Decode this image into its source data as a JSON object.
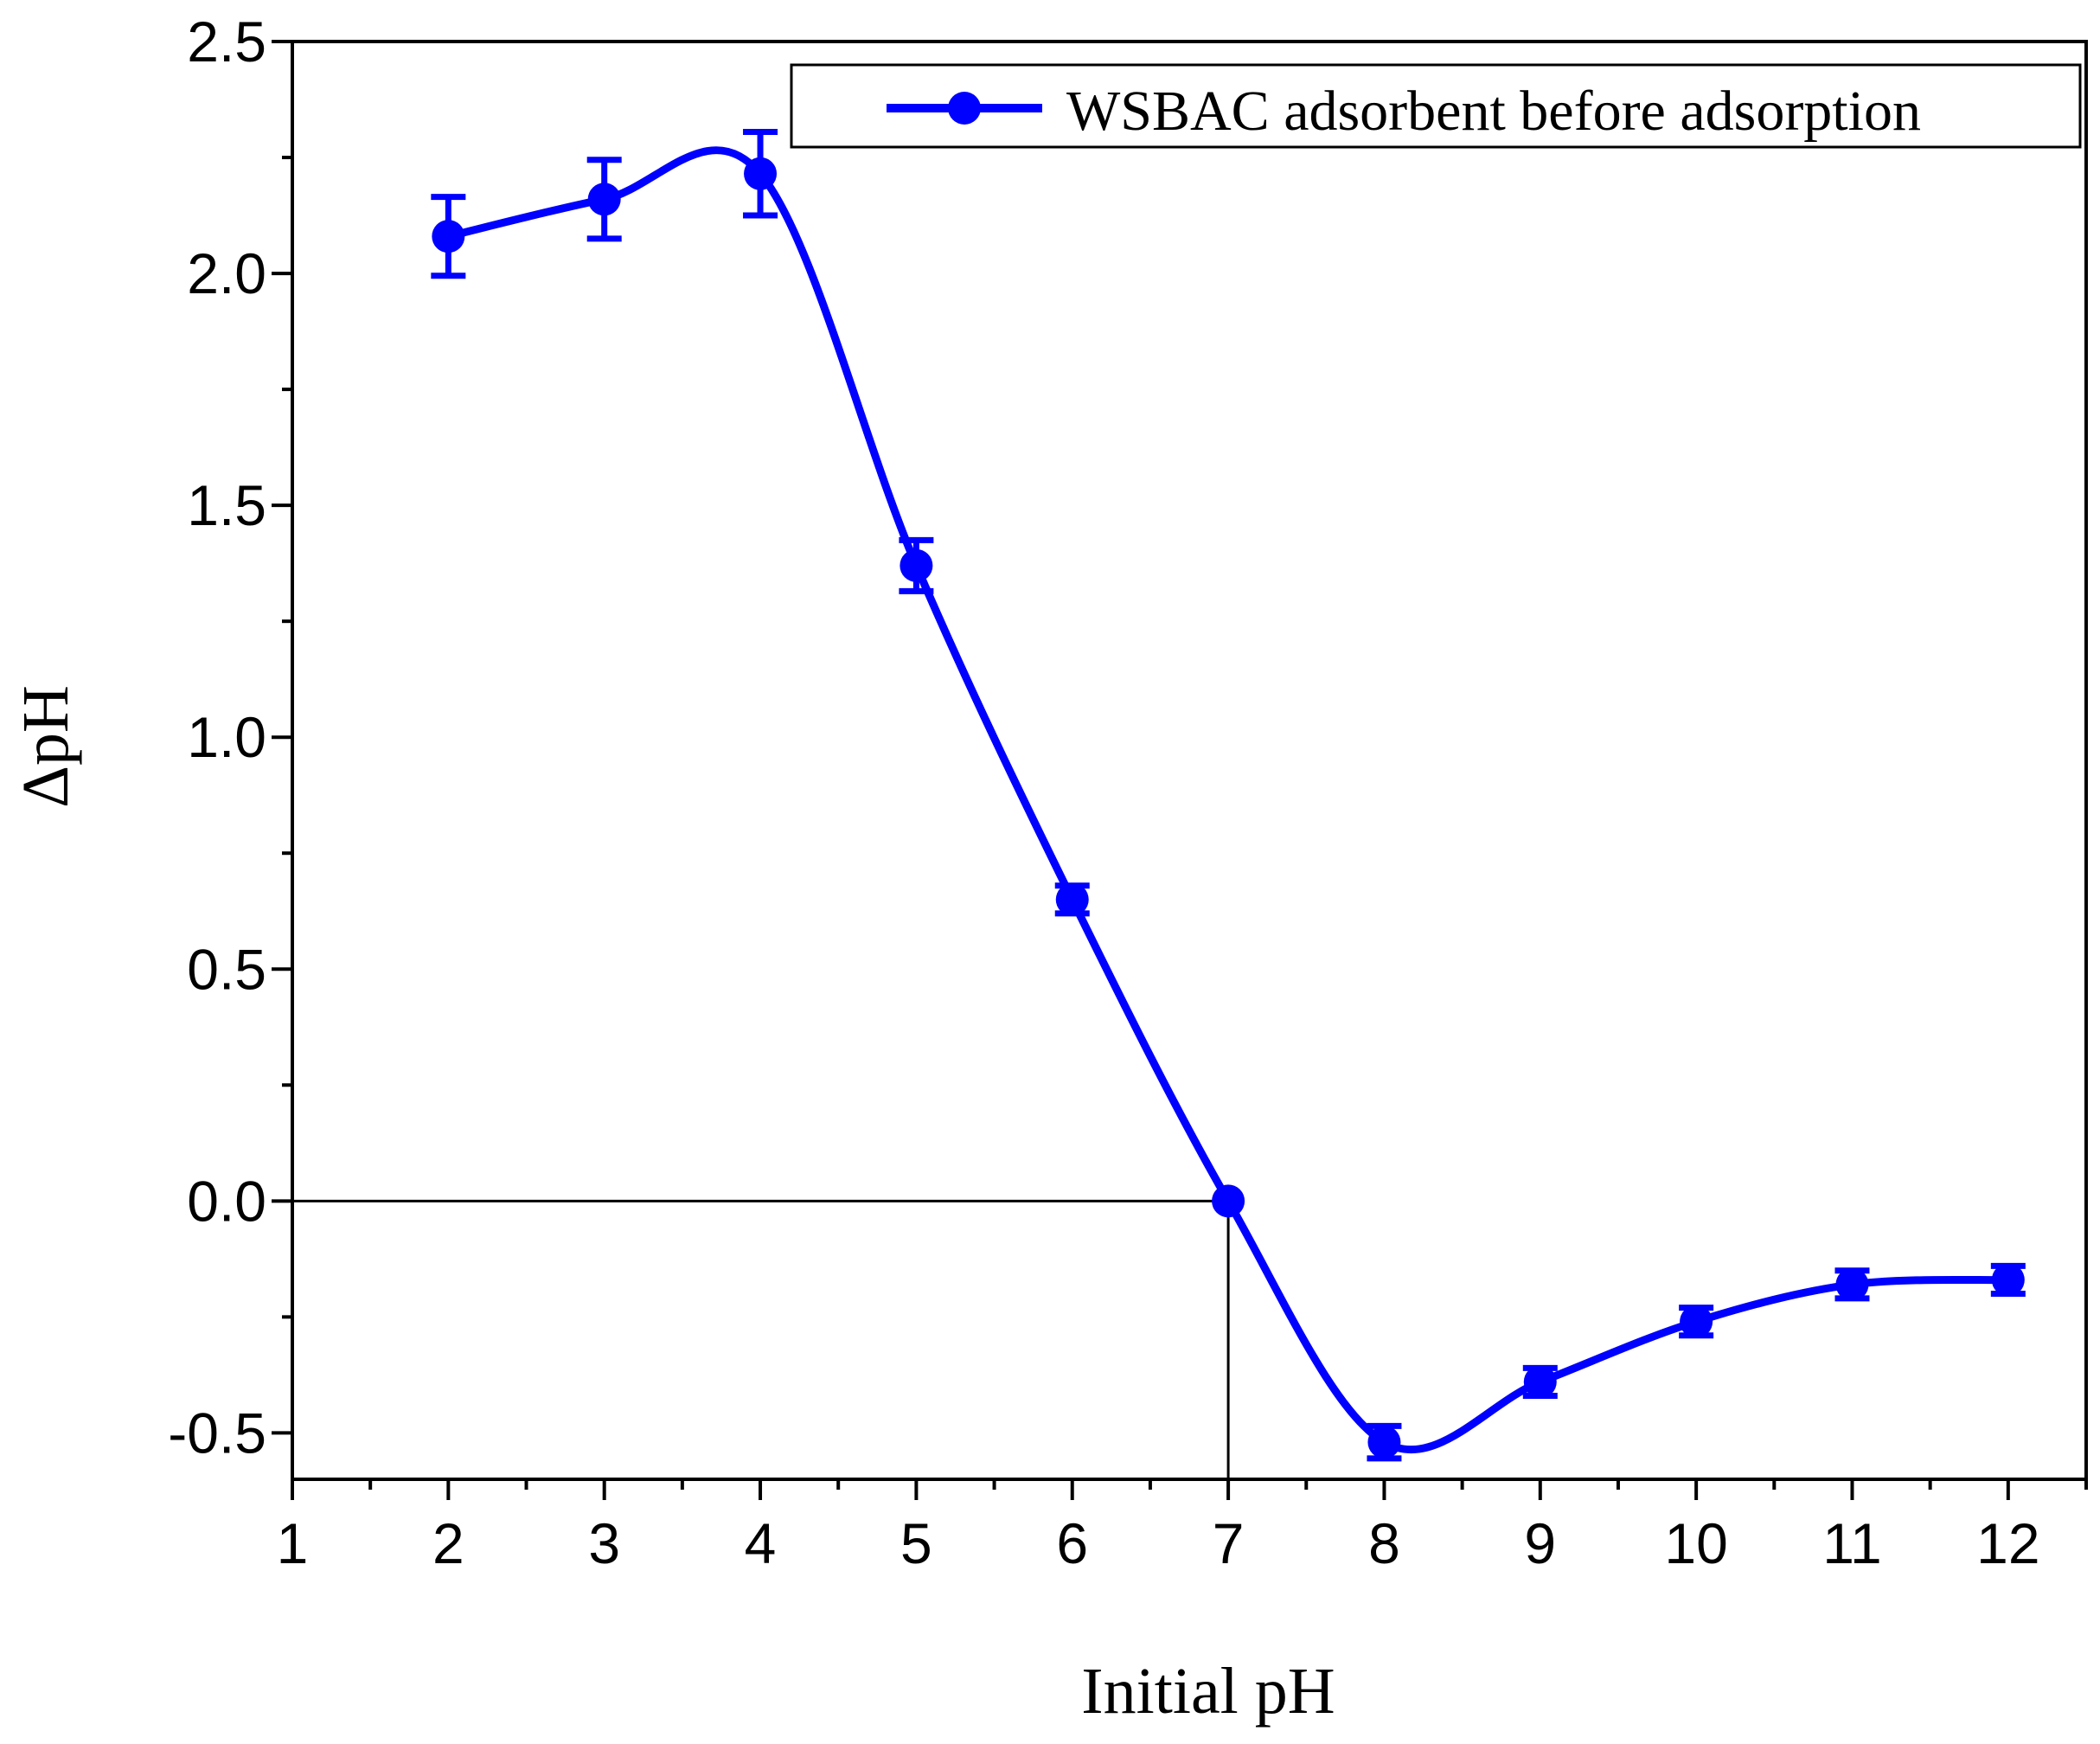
{
  "chart_data": {
    "type": "line",
    "title": "",
    "xlabel": "Initial pH",
    "ylabel": "ΔpH",
    "xlim": [
      1,
      12.5
    ],
    "ylim": [
      -0.6,
      2.5
    ],
    "x_ticks": [
      "1",
      "2",
      "3",
      "4",
      "5",
      "6",
      "7",
      "8",
      "9",
      "10",
      "11",
      "12"
    ],
    "y_ticks": [
      "2.5",
      "2.0",
      "1.5",
      "1.0",
      "0.5",
      "0.0",
      "-0.5"
    ],
    "grid": false,
    "legend_position": "top-right",
    "series": [
      {
        "name": "WSBAC adsorbent before adsorption",
        "color": "#0000ff",
        "smooth": true,
        "x": [
          2,
          3,
          4,
          5,
          6,
          7,
          8,
          9,
          10,
          11,
          12
        ],
        "y": [
          2.08,
          2.16,
          2.215,
          1.37,
          0.65,
          0.0,
          -0.52,
          -0.39,
          -0.26,
          -0.18,
          -0.17
        ],
        "error": [
          0.085,
          0.085,
          0.09,
          0.055,
          0.03,
          0.0,
          0.035,
          0.03,
          0.03,
          0.03,
          0.03
        ]
      }
    ],
    "annotations": [
      {
        "type": "hline",
        "y": 0.0,
        "x_range": [
          1,
          7
        ]
      },
      {
        "type": "vline",
        "x": 7,
        "y_range": [
          -0.6,
          0.0
        ]
      }
    ]
  }
}
